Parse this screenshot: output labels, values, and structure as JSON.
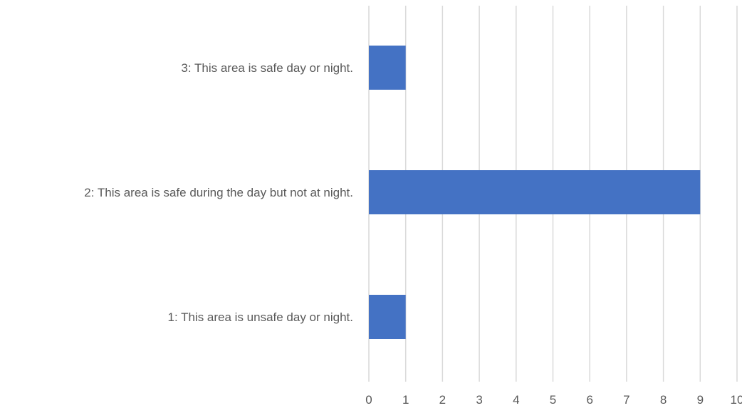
{
  "chart_data": {
    "type": "bar",
    "orientation": "horizontal",
    "categories": [
      "3: This area is safe day or night.",
      "2: This area is safe during the day but not at night.",
      "1: This area is unsafe day or night."
    ],
    "values": [
      1,
      9,
      1
    ],
    "xlim": [
      0,
      10
    ],
    "x_ticks": [
      0,
      1,
      2,
      3,
      4,
      5,
      6,
      7,
      8,
      9,
      10
    ],
    "grid": true,
    "title": "",
    "xlabel": "",
    "ylabel": "",
    "colors": {
      "bar": "#4472C4",
      "grid": "#D9D9D9",
      "text": "#595959"
    }
  }
}
